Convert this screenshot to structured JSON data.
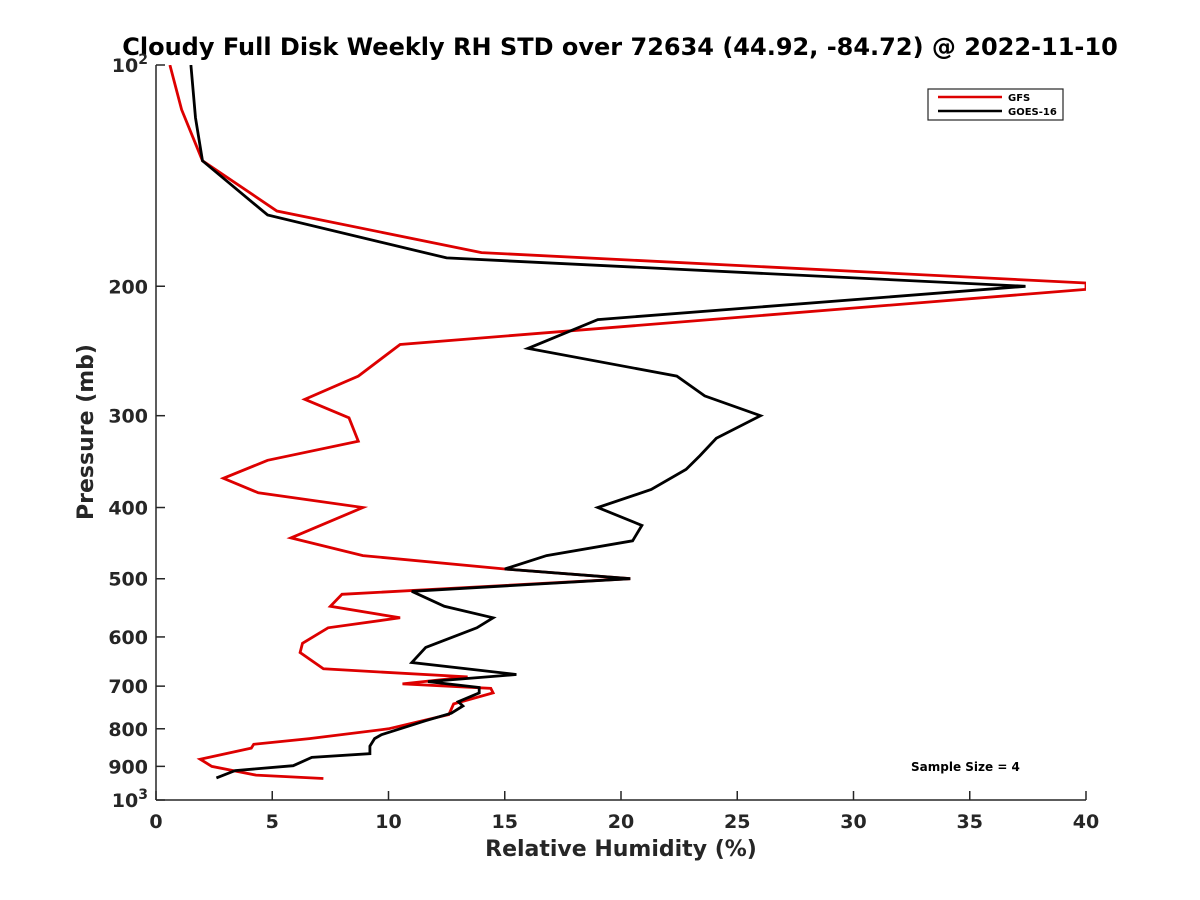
{
  "chart_data": {
    "type": "line",
    "title": "Cloudy Full Disk Weekly RH STD over 72634 (44.92, -84.72) @ 2022-11-10",
    "xlabel": "Relative Humidity (%)",
    "ylabel": "Pressure (mb)",
    "xlim": [
      0,
      40
    ],
    "ylim": [
      100,
      1000
    ],
    "y_scale": "log",
    "y_reversed": true,
    "x_ticks": [
      "0",
      "5",
      "10",
      "15",
      "20",
      "25",
      "30",
      "35",
      "40"
    ],
    "y_ticks": [
      {
        "value": 100,
        "base": "10",
        "exp": "2"
      },
      {
        "value": 200,
        "label": "200"
      },
      {
        "value": 300,
        "label": "300"
      },
      {
        "value": 400,
        "label": "400"
      },
      {
        "value": 500,
        "label": "500"
      },
      {
        "value": 600,
        "label": "600"
      },
      {
        "value": 700,
        "label": "700"
      },
      {
        "value": 800,
        "label": "800"
      },
      {
        "value": 900,
        "label": "900"
      },
      {
        "value": 1000,
        "base": "10",
        "exp": "3"
      }
    ],
    "grid": false,
    "legend_position": "top-right",
    "annotation": "Sample Size = 4",
    "series": [
      {
        "name": "GFS",
        "color": "#dd0000",
        "points": [
          [
            0.6,
            100
          ],
          [
            1.1,
            115
          ],
          [
            2.0,
            135
          ],
          [
            5.2,
            158
          ],
          [
            14.0,
            180
          ],
          [
            40.0,
            198
          ],
          [
            40.0,
            202
          ],
          [
            10.5,
            240
          ],
          [
            8.7,
            265
          ],
          [
            6.4,
            285
          ],
          [
            8.3,
            302
          ],
          [
            8.7,
            325
          ],
          [
            4.8,
            345
          ],
          [
            2.9,
            365
          ],
          [
            4.4,
            382
          ],
          [
            8.9,
            400
          ],
          [
            5.8,
            440
          ],
          [
            8.9,
            465
          ],
          [
            15.0,
            485
          ],
          [
            20.4,
            500
          ],
          [
            8.0,
            525
          ],
          [
            7.5,
            545
          ],
          [
            10.5,
            565
          ],
          [
            7.4,
            583
          ],
          [
            6.3,
            612
          ],
          [
            6.2,
            630
          ],
          [
            7.2,
            663
          ],
          [
            13.4,
            680
          ],
          [
            10.6,
            695
          ],
          [
            14.4,
            705
          ],
          [
            14.5,
            715
          ],
          [
            12.8,
            740
          ],
          [
            12.6,
            765
          ],
          [
            10.0,
            800
          ],
          [
            6.6,
            825
          ],
          [
            4.2,
            840
          ],
          [
            4.1,
            850
          ],
          [
            1.9,
            880
          ],
          [
            2.4,
            900
          ],
          [
            4.3,
            925
          ],
          [
            7.2,
            935
          ]
        ]
      },
      {
        "name": "GOES-16",
        "color": "#000000",
        "points": [
          [
            1.5,
            100
          ],
          [
            1.7,
            118
          ],
          [
            2.0,
            135
          ],
          [
            4.8,
            160
          ],
          [
            12.5,
            183
          ],
          [
            37.4,
            200
          ],
          [
            19.0,
            222
          ],
          [
            16.0,
            243
          ],
          [
            22.4,
            265
          ],
          [
            23.6,
            282
          ],
          [
            26.0,
            300
          ],
          [
            24.1,
            322
          ],
          [
            23.4,
            340
          ],
          [
            22.8,
            355
          ],
          [
            21.3,
            378
          ],
          [
            19.0,
            400
          ],
          [
            20.9,
            423
          ],
          [
            20.5,
            444
          ],
          [
            16.8,
            465
          ],
          [
            15.0,
            485
          ],
          [
            20.4,
            500
          ],
          [
            11.0,
            520
          ],
          [
            12.4,
            545
          ],
          [
            14.5,
            565
          ],
          [
            13.8,
            583
          ],
          [
            11.6,
            620
          ],
          [
            11.0,
            650
          ],
          [
            15.5,
            675
          ],
          [
            11.7,
            690
          ],
          [
            13.9,
            703
          ],
          [
            13.9,
            715
          ],
          [
            13.0,
            735
          ],
          [
            13.2,
            745
          ],
          [
            12.7,
            762
          ],
          [
            11.6,
            780
          ],
          [
            9.7,
            815
          ],
          [
            9.4,
            825
          ],
          [
            9.2,
            845
          ],
          [
            9.2,
            865
          ],
          [
            6.7,
            875
          ],
          [
            5.9,
            898
          ],
          [
            3.4,
            912
          ],
          [
            2.6,
            933
          ]
        ]
      }
    ]
  }
}
